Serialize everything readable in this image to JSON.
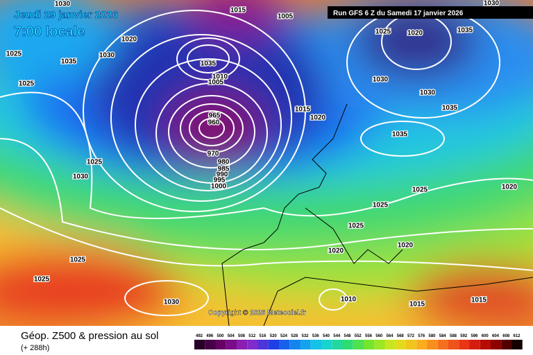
{
  "header": {
    "valid_date": "Jeudi 29 janvier 2026",
    "local_time": "7:00 locale",
    "run": "Run GFS 6 Z du Samedi 17 janvier 2026"
  },
  "copyright": "Copyright © 2026 Meteociel.fr",
  "footer": {
    "title": "Géop. Z500 & pression au sol",
    "lead": "(+ 288h)"
  },
  "legend": {
    "ticks": [
      "492",
      "496",
      "500",
      "504",
      "508",
      "512",
      "516",
      "520",
      "524",
      "528",
      "532",
      "536",
      "540",
      "544",
      "548",
      "552",
      "556",
      "560",
      "564",
      "568",
      "572",
      "576",
      "580",
      "584",
      "588",
      "592",
      "596",
      "600",
      "604",
      "608",
      "612"
    ]
  },
  "isobar_labels": [
    "1030",
    "1015",
    "1005",
    "1020",
    "1030",
    "1035",
    "1025",
    "1025",
    "1035",
    "1010",
    "1005",
    "965",
    "960",
    "970",
    "980",
    "985",
    "990",
    "995",
    "1000",
    "1025",
    "1030",
    "1025",
    "1025",
    "1030",
    "1015",
    "1020",
    "1025",
    "1020",
    "1035",
    "1030",
    "1030",
    "1035",
    "1035",
    "1025",
    "1025",
    "1025",
    "1020",
    "1020",
    "1010",
    "1015",
    "1015",
    "1020",
    "1030"
  ]
}
